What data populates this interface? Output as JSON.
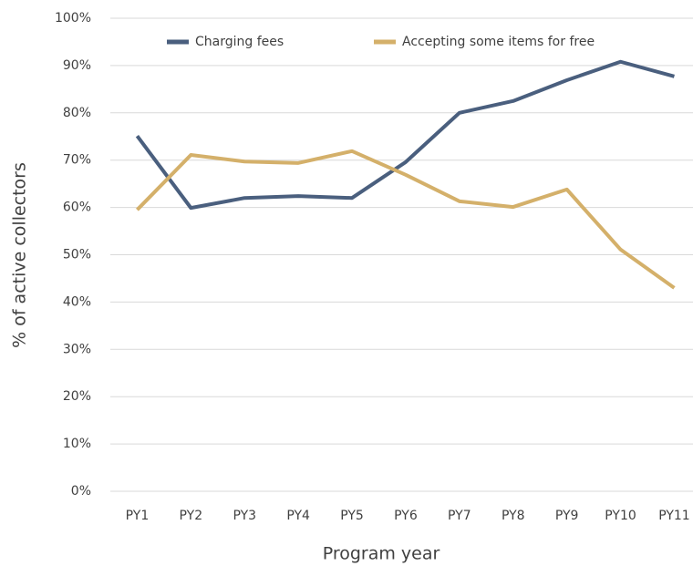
{
  "chart_data": {
    "type": "line",
    "x_label": "Program year",
    "y_label": "% of active collectors",
    "categories": [
      "PY1",
      "PY2",
      "PY3",
      "PY4",
      "PY5",
      "PY6",
      "PY7",
      "PY8",
      "PY9",
      "PY10",
      "PY11"
    ],
    "series": [
      {
        "name": "Charging fees",
        "color": "#4a5f7e",
        "values": [
          75.1,
          59.9,
          62.0,
          62.4,
          62.0,
          69.6,
          80.0,
          82.5,
          86.9,
          90.8,
          87.7
        ]
      },
      {
        "name": "Accepting some items for free",
        "color": "#d4b06a",
        "values": [
          59.5,
          71.1,
          69.7,
          69.4,
          71.9,
          66.9,
          61.3,
          60.1,
          63.8,
          51.1,
          43.0
        ]
      }
    ],
    "ylim": [
      0,
      100
    ],
    "yticks": [
      {
        "value": 0,
        "label": "0%"
      },
      {
        "value": 10,
        "label": "10%"
      },
      {
        "value": 20,
        "label": "20%"
      },
      {
        "value": 30,
        "label": "30%"
      },
      {
        "value": 40,
        "label": "40%"
      },
      {
        "value": 50,
        "label": "50%"
      },
      {
        "value": 60,
        "label": "60%"
      },
      {
        "value": 70,
        "label": "70%"
      },
      {
        "value": 80,
        "label": "80%"
      },
      {
        "value": 90,
        "label": "90%"
      },
      {
        "value": 100,
        "label": "100%"
      }
    ],
    "grid": true,
    "legend": "top"
  }
}
